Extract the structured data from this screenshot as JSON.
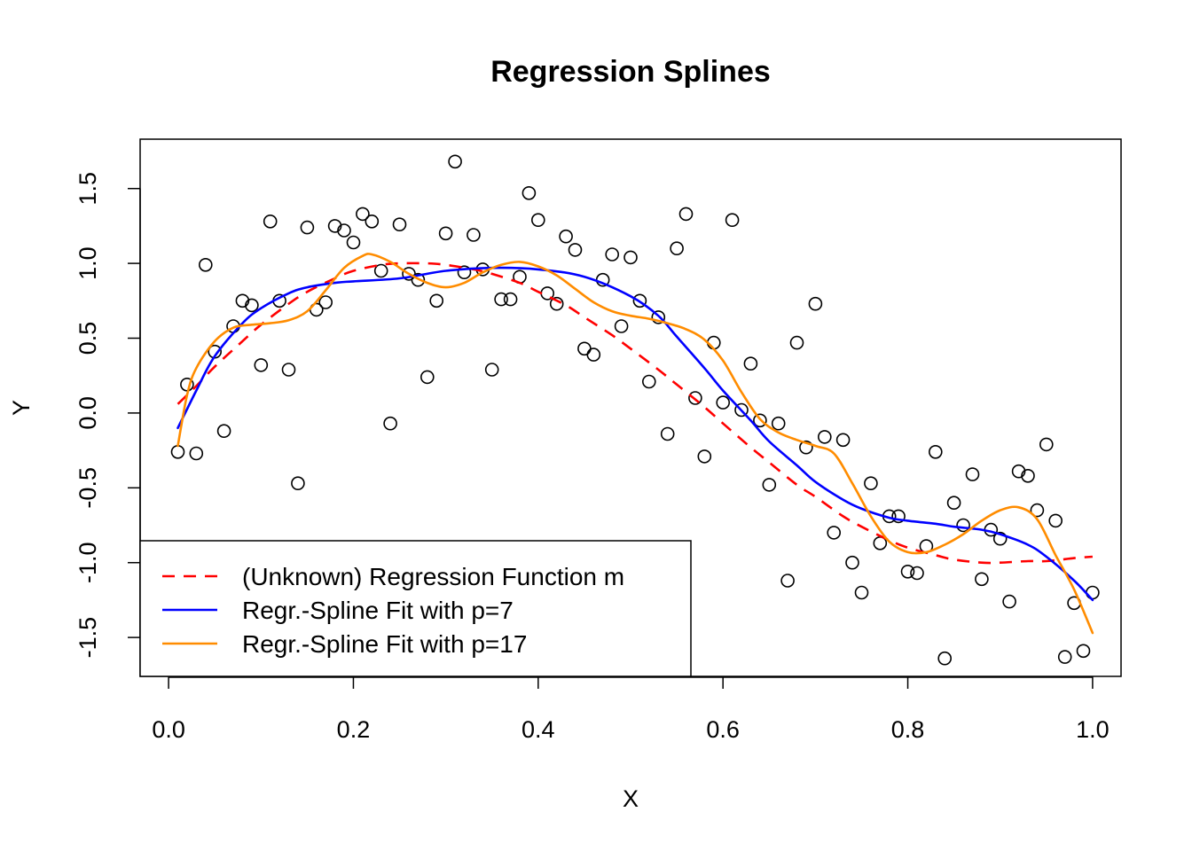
{
  "chart_data": {
    "type": "scatter",
    "title": "Regression Splines",
    "xlabel": "X",
    "ylabel": "Y",
    "xlim": [
      -0.0308,
      1.0308
    ],
    "ylim": [
      -1.76,
      1.83
    ],
    "xticks": [
      0.0,
      0.2,
      0.4,
      0.6,
      0.8,
      1.0
    ],
    "xtick_labels": [
      "0.0",
      "0.2",
      "0.4",
      "0.6",
      "0.8",
      "1.0"
    ],
    "yticks": [
      -1.5,
      -1.0,
      -0.5,
      0.0,
      0.5,
      1.0,
      1.5
    ],
    "ytick_labels": [
      "-1.5",
      "-1.0",
      "-0.5",
      "0.0",
      "0.5",
      "1.0",
      "1.5"
    ],
    "grid": false,
    "legend_position": "bottom-left",
    "points": {
      "marker": "open-circle",
      "x": [
        0.01,
        0.02,
        0.03,
        0.04,
        0.05,
        0.06,
        0.07,
        0.08,
        0.09,
        0.1,
        0.11,
        0.12,
        0.13,
        0.14,
        0.15,
        0.16,
        0.17,
        0.18,
        0.19,
        0.2,
        0.21,
        0.22,
        0.23,
        0.24,
        0.25,
        0.26,
        0.27,
        0.28,
        0.29,
        0.3,
        0.31,
        0.32,
        0.33,
        0.34,
        0.35,
        0.36,
        0.37,
        0.38,
        0.39,
        0.4,
        0.41,
        0.42,
        0.43,
        0.44,
        0.45,
        0.46,
        0.47,
        0.48,
        0.49,
        0.5,
        0.51,
        0.52,
        0.53,
        0.54,
        0.55,
        0.56,
        0.57,
        0.58,
        0.59,
        0.6,
        0.61,
        0.62,
        0.63,
        0.64,
        0.65,
        0.66,
        0.67,
        0.68,
        0.69,
        0.7,
        0.71,
        0.72,
        0.73,
        0.74,
        0.75,
        0.76,
        0.77,
        0.78,
        0.79,
        0.8,
        0.81,
        0.82,
        0.83,
        0.84,
        0.85,
        0.86,
        0.87,
        0.88,
        0.89,
        0.9,
        0.91,
        0.92,
        0.93,
        0.94,
        0.95,
        0.96,
        0.97,
        0.98,
        0.99,
        1.0
      ],
      "y": [
        -0.26,
        0.19,
        -0.27,
        0.99,
        0.41,
        -0.12,
        0.58,
        0.75,
        0.72,
        0.32,
        1.28,
        0.75,
        0.29,
        -0.47,
        1.24,
        0.69,
        0.74,
        1.25,
        1.22,
        1.14,
        1.33,
        1.28,
        0.95,
        -0.07,
        1.26,
        0.93,
        0.89,
        0.24,
        0.75,
        1.2,
        1.68,
        0.94,
        1.19,
        0.96,
        0.29,
        0.76,
        0.76,
        0.91,
        1.47,
        1.29,
        0.8,
        0.73,
        1.18,
        1.09,
        0.43,
        0.39,
        0.89,
        1.06,
        0.58,
        1.04,
        0.75,
        0.21,
        0.64,
        -0.14,
        1.1,
        1.33,
        0.1,
        -0.29,
        0.47,
        0.07,
        1.29,
        0.02,
        0.33,
        -0.05,
        -0.48,
        -0.07,
        -1.12,
        0.47,
        -0.23,
        0.73,
        -0.16,
        -0.8,
        -0.18,
        -1.0,
        -1.2,
        -0.47,
        -0.87,
        -0.69,
        -0.69,
        -1.06,
        -1.07,
        -0.89,
        -0.26,
        -1.64,
        -0.6,
        -0.75,
        -0.41,
        -1.11,
        -0.78,
        -0.84,
        -1.26,
        -0.39,
        -0.42,
        -0.65,
        -0.21,
        -0.72,
        -1.63,
        -1.27,
        -1.59,
        -1.2
      ]
    },
    "series": [
      {
        "name": "(Unknown) Regression Function m",
        "color": "#ff0000",
        "style": "dashed",
        "x": [
          0.01,
          0.03,
          0.05,
          0.08,
          0.1,
          0.13,
          0.15,
          0.18,
          0.2,
          0.23,
          0.25,
          0.28,
          0.3,
          0.33,
          0.35,
          0.38,
          0.4,
          0.43,
          0.45,
          0.48,
          0.5,
          0.53,
          0.55,
          0.58,
          0.6,
          0.63,
          0.65,
          0.68,
          0.7,
          0.73,
          0.75,
          0.78,
          0.8,
          0.83,
          0.85,
          0.88,
          0.9,
          0.93,
          0.95,
          0.98,
          1.0
        ],
        "y": [
          0.06,
          0.18,
          0.31,
          0.48,
          0.59,
          0.73,
          0.81,
          0.9,
          0.95,
          0.99,
          1.0,
          1.0,
          0.99,
          0.96,
          0.93,
          0.87,
          0.81,
          0.72,
          0.64,
          0.52,
          0.43,
          0.29,
          0.19,
          0.04,
          -0.07,
          -0.23,
          -0.33,
          -0.48,
          -0.56,
          -0.69,
          -0.76,
          -0.85,
          -0.9,
          -0.95,
          -0.98,
          -1.0,
          -1.0,
          -0.99,
          -0.99,
          -0.97,
          -0.96
        ]
      },
      {
        "name": "Regr.-Spline Fit with p=7",
        "color": "#0000ff",
        "style": "solid",
        "x": [
          0.01,
          0.03,
          0.05,
          0.08,
          0.1,
          0.13,
          0.15,
          0.18,
          0.2,
          0.25,
          0.3,
          0.35,
          0.4,
          0.45,
          0.5,
          0.53,
          0.55,
          0.58,
          0.6,
          0.63,
          0.65,
          0.68,
          0.7,
          0.73,
          0.75,
          0.78,
          0.8,
          0.83,
          0.85,
          0.88,
          0.9,
          0.93,
          0.95,
          0.98,
          1.0
        ],
        "y": [
          -0.1,
          0.15,
          0.38,
          0.6,
          0.7,
          0.8,
          0.84,
          0.87,
          0.88,
          0.9,
          0.95,
          0.97,
          0.96,
          0.91,
          0.78,
          0.65,
          0.51,
          0.3,
          0.15,
          -0.05,
          -0.19,
          -0.35,
          -0.46,
          -0.58,
          -0.64,
          -0.7,
          -0.72,
          -0.74,
          -0.76,
          -0.78,
          -0.81,
          -0.88,
          -0.96,
          -1.12,
          -1.25
        ]
      },
      {
        "name": "Regr.-Spline Fit with p=17",
        "color": "#ff8c00",
        "style": "solid",
        "x": [
          0.01,
          0.02,
          0.03,
          0.05,
          0.07,
          0.09,
          0.11,
          0.13,
          0.15,
          0.17,
          0.19,
          0.21,
          0.22,
          0.24,
          0.26,
          0.28,
          0.3,
          0.32,
          0.34,
          0.36,
          0.38,
          0.4,
          0.42,
          0.44,
          0.46,
          0.48,
          0.5,
          0.52,
          0.54,
          0.56,
          0.58,
          0.6,
          0.62,
          0.64,
          0.66,
          0.68,
          0.7,
          0.72,
          0.74,
          0.76,
          0.78,
          0.8,
          0.82,
          0.84,
          0.86,
          0.88,
          0.9,
          0.92,
          0.94,
          0.96,
          0.98,
          1.0
        ],
        "y": [
          -0.22,
          0.12,
          0.3,
          0.48,
          0.57,
          0.59,
          0.6,
          0.62,
          0.68,
          0.82,
          0.97,
          1.05,
          1.06,
          1.01,
          0.93,
          0.87,
          0.84,
          0.87,
          0.94,
          0.99,
          1.01,
          0.98,
          0.92,
          0.83,
          0.74,
          0.68,
          0.65,
          0.63,
          0.6,
          0.56,
          0.49,
          0.35,
          0.14,
          -0.04,
          -0.13,
          -0.18,
          -0.22,
          -0.27,
          -0.47,
          -0.69,
          -0.86,
          -0.93,
          -0.93,
          -0.88,
          -0.81,
          -0.72,
          -0.65,
          -0.63,
          -0.71,
          -0.95,
          -1.18,
          -1.47
        ]
      }
    ]
  }
}
